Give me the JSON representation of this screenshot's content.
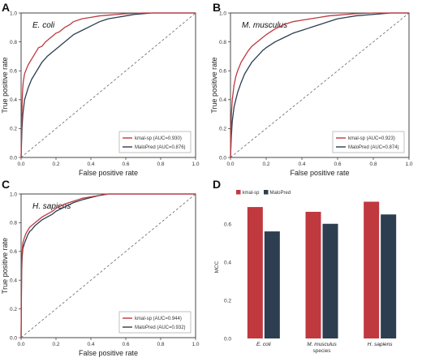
{
  "colors": {
    "kmal": "#c0393f",
    "malo": "#2c3e4f",
    "diag": "#666666"
  },
  "chart_data": [
    {
      "type": "line",
      "panel_label": "A",
      "species": "E. coli",
      "xlabel": "False positive rate",
      "ylabel": "True positive rate",
      "xlim": [
        0,
        1
      ],
      "ylim": [
        0,
        1
      ],
      "ticks": [
        "0.0",
        "0.2",
        "0.4",
        "0.6",
        "0.8",
        "1.0"
      ],
      "legend_position": "bottom-right",
      "series": [
        {
          "name": "kmal-sp (AUC=0.930)",
          "color_key": "kmal",
          "x": [
            0,
            0.004,
            0.008,
            0.012,
            0.02,
            0.03,
            0.04,
            0.05,
            0.06,
            0.07,
            0.08,
            0.09,
            0.1,
            0.12,
            0.14,
            0.16,
            0.18,
            0.2,
            0.22,
            0.25,
            0.28,
            0.3,
            0.35,
            0.4,
            0.45,
            0.5,
            0.55,
            0.6,
            0.7,
            0.8,
            1.0
          ],
          "y": [
            0,
            0.3,
            0.45,
            0.52,
            0.58,
            0.61,
            0.64,
            0.66,
            0.68,
            0.7,
            0.72,
            0.74,
            0.76,
            0.77,
            0.8,
            0.82,
            0.84,
            0.86,
            0.87,
            0.9,
            0.92,
            0.94,
            0.96,
            0.97,
            0.98,
            0.985,
            0.99,
            0.995,
            1.0,
            1.0,
            1.0
          ]
        },
        {
          "name": "MaloPred (AUC=0.876)",
          "color_key": "malo",
          "x": [
            0,
            0.005,
            0.01,
            0.02,
            0.04,
            0.06,
            0.08,
            0.1,
            0.12,
            0.15,
            0.18,
            0.2,
            0.25,
            0.3,
            0.35,
            0.4,
            0.45,
            0.5,
            0.55,
            0.6,
            0.65,
            0.7,
            0.75,
            0.8,
            0.9,
            1.0
          ],
          "y": [
            0,
            0.2,
            0.3,
            0.4,
            0.48,
            0.54,
            0.58,
            0.62,
            0.66,
            0.7,
            0.73,
            0.75,
            0.8,
            0.85,
            0.88,
            0.91,
            0.94,
            0.96,
            0.97,
            0.98,
            0.99,
            0.995,
            1.0,
            1.0,
            1.0,
            1.0
          ]
        }
      ]
    },
    {
      "type": "line",
      "panel_label": "B",
      "species": "M. musculus",
      "xlabel": "False positive rate",
      "ylabel": "True positive rate",
      "xlim": [
        0,
        1
      ],
      "ylim": [
        0,
        1
      ],
      "ticks": [
        "0.0",
        "0.2",
        "0.4",
        "0.6",
        "0.8",
        "1.0"
      ],
      "legend_position": "bottom-right",
      "series": [
        {
          "name": "kmal-sp (AUC=0.923)",
          "color_key": "kmal",
          "x": [
            0,
            0.005,
            0.01,
            0.02,
            0.03,
            0.04,
            0.05,
            0.06,
            0.08,
            0.1,
            0.12,
            0.15,
            0.18,
            0.2,
            0.25,
            0.3,
            0.35,
            0.4,
            0.45,
            0.5,
            0.55,
            0.6,
            0.65,
            0.7,
            0.8,
            0.9,
            1.0
          ],
          "y": [
            0,
            0.3,
            0.4,
            0.5,
            0.56,
            0.6,
            0.63,
            0.66,
            0.7,
            0.74,
            0.77,
            0.8,
            0.83,
            0.85,
            0.89,
            0.92,
            0.94,
            0.95,
            0.96,
            0.97,
            0.98,
            0.985,
            0.99,
            0.995,
            1.0,
            1.0,
            1.0
          ]
        },
        {
          "name": "MaloPred (AUC=0.874)",
          "color_key": "malo",
          "x": [
            0,
            0.005,
            0.01,
            0.02,
            0.04,
            0.06,
            0.08,
            0.1,
            0.12,
            0.15,
            0.18,
            0.2,
            0.25,
            0.3,
            0.35,
            0.4,
            0.45,
            0.5,
            0.55,
            0.6,
            0.65,
            0.7,
            0.8,
            0.9,
            1.0
          ],
          "y": [
            0,
            0.15,
            0.25,
            0.35,
            0.45,
            0.52,
            0.58,
            0.62,
            0.66,
            0.7,
            0.74,
            0.76,
            0.8,
            0.83,
            0.86,
            0.88,
            0.9,
            0.92,
            0.94,
            0.96,
            0.97,
            0.98,
            0.99,
            1.0,
            1.0
          ]
        }
      ]
    },
    {
      "type": "line",
      "panel_label": "C",
      "species": "H. sapiens",
      "xlabel": "False positive rate",
      "ylabel": "True positive rate",
      "xlim": [
        0,
        1
      ],
      "ylim": [
        0,
        1
      ],
      "ticks": [
        "0.0",
        "0.2",
        "0.4",
        "0.6",
        "0.8",
        "1.0"
      ],
      "legend_position": "bottom-right",
      "series": [
        {
          "name": "kmal-sp (AUC=0.944)",
          "color_key": "kmal",
          "x": [
            0,
            0.003,
            0.006,
            0.01,
            0.02,
            0.03,
            0.04,
            0.05,
            0.06,
            0.08,
            0.1,
            0.12,
            0.15,
            0.18,
            0.2,
            0.25,
            0.3,
            0.35,
            0.4,
            0.45,
            0.5,
            0.6,
            0.7,
            0.8,
            1.0
          ],
          "y": [
            0,
            0.5,
            0.6,
            0.66,
            0.7,
            0.73,
            0.75,
            0.77,
            0.78,
            0.8,
            0.82,
            0.84,
            0.86,
            0.88,
            0.9,
            0.93,
            0.95,
            0.97,
            0.98,
            0.99,
            1.0,
            1.0,
            1.0,
            1.0,
            1.0
          ]
        },
        {
          "name": "MaloPred (AUC=0.932)",
          "color_key": "malo",
          "x": [
            0,
            0.003,
            0.006,
            0.01,
            0.02,
            0.03,
            0.04,
            0.05,
            0.06,
            0.08,
            0.1,
            0.12,
            0.15,
            0.18,
            0.2,
            0.25,
            0.3,
            0.35,
            0.4,
            0.45,
            0.5,
            0.6,
            0.7,
            0.8,
            1.0
          ],
          "y": [
            0,
            0.46,
            0.56,
            0.62,
            0.66,
            0.69,
            0.72,
            0.74,
            0.75,
            0.78,
            0.8,
            0.82,
            0.84,
            0.86,
            0.88,
            0.91,
            0.94,
            0.96,
            0.975,
            0.99,
            1.0,
            1.0,
            1.0,
            1.0,
            1.0
          ]
        }
      ]
    },
    {
      "type": "bar",
      "panel_label": "D",
      "xlabel": "species",
      "ylabel": "MCC",
      "ylim": [
        0,
        0.75
      ],
      "yticks": [
        "0.0",
        "0.2",
        "0.4",
        "0.6"
      ],
      "categories": [
        "E. coli",
        "M. musculus",
        "H. sapiens"
      ],
      "legend_position": "top-left",
      "series": [
        {
          "name": "kmal-sp",
          "color_key": "kmal",
          "values": [
            0.69,
            0.665,
            0.718
          ]
        },
        {
          "name": "MaloPred",
          "color_key": "malo",
          "values": [
            0.562,
            0.602,
            0.651
          ]
        }
      ]
    }
  ]
}
